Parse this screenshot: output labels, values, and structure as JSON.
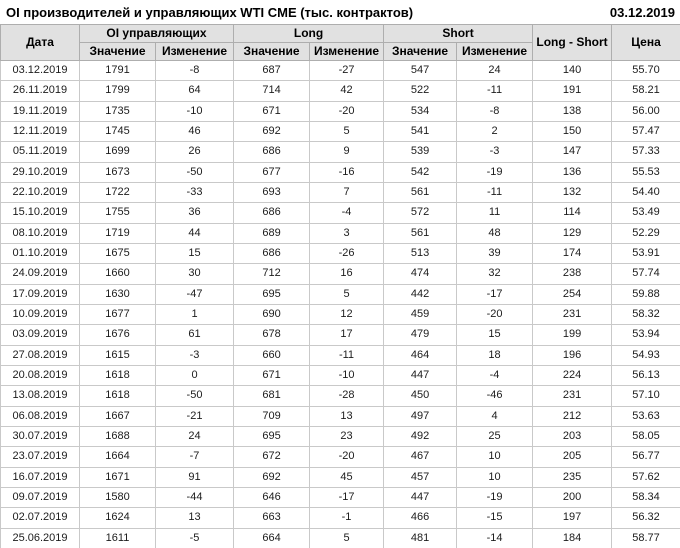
{
  "title": "OI производителей и управляющих WTI CME (тыс. контрактов)",
  "report_date": "03.12.2019",
  "colors": {
    "positive_change": "#009900",
    "negative_change": "#cc0000",
    "header_background": "#e1e1e1",
    "grid_line": "#c9c9c9",
    "text": "#1c1c1c"
  },
  "table": {
    "headers": {
      "date": "Дата",
      "oi_group": "OI управляющих",
      "long_group": "Long",
      "short_group": "Short",
      "value": "Значение",
      "change": "Изменение",
      "long_short": "Long - Short",
      "price": "Цена"
    },
    "row_keys": [
      "date",
      "oi_value",
      "oi_change",
      "long_value",
      "long_change",
      "short_value",
      "short_change",
      "long_short",
      "price"
    ],
    "change_keys": [
      "oi_change",
      "long_change",
      "short_change"
    ],
    "rows": [
      {
        "date": "03.12.2019",
        "oi_value": "1791",
        "oi_change": "-8",
        "long_value": "687",
        "long_change": "-27",
        "short_value": "547",
        "short_change": "24",
        "long_short": "140",
        "price": "55.70"
      },
      {
        "date": "26.11.2019",
        "oi_value": "1799",
        "oi_change": "64",
        "long_value": "714",
        "long_change": "42",
        "short_value": "522",
        "short_change": "-11",
        "long_short": "191",
        "price": "58.21"
      },
      {
        "date": "19.11.2019",
        "oi_value": "1735",
        "oi_change": "-10",
        "long_value": "671",
        "long_change": "-20",
        "short_value": "534",
        "short_change": "-8",
        "long_short": "138",
        "price": "56.00"
      },
      {
        "date": "12.11.2019",
        "oi_value": "1745",
        "oi_change": "46",
        "long_value": "692",
        "long_change": "5",
        "short_value": "541",
        "short_change": "2",
        "long_short": "150",
        "price": "57.47"
      },
      {
        "date": "05.11.2019",
        "oi_value": "1699",
        "oi_change": "26",
        "long_value": "686",
        "long_change": "9",
        "short_value": "539",
        "short_change": "-3",
        "long_short": "147",
        "price": "57.33"
      },
      {
        "date": "29.10.2019",
        "oi_value": "1673",
        "oi_change": "-50",
        "long_value": "677",
        "long_change": "-16",
        "short_value": "542",
        "short_change": "-19",
        "long_short": "136",
        "price": "55.53"
      },
      {
        "date": "22.10.2019",
        "oi_value": "1722",
        "oi_change": "-33",
        "long_value": "693",
        "long_change": "7",
        "short_value": "561",
        "short_change": "-11",
        "long_short": "132",
        "price": "54.40"
      },
      {
        "date": "15.10.2019",
        "oi_value": "1755",
        "oi_change": "36",
        "long_value": "686",
        "long_change": "-4",
        "short_value": "572",
        "short_change": "11",
        "long_short": "114",
        "price": "53.49"
      },
      {
        "date": "08.10.2019",
        "oi_value": "1719",
        "oi_change": "44",
        "long_value": "689",
        "long_change": "3",
        "short_value": "561",
        "short_change": "48",
        "long_short": "129",
        "price": "52.29"
      },
      {
        "date": "01.10.2019",
        "oi_value": "1675",
        "oi_change": "15",
        "long_value": "686",
        "long_change": "-26",
        "short_value": "513",
        "short_change": "39",
        "long_short": "174",
        "price": "53.91"
      },
      {
        "date": "24.09.2019",
        "oi_value": "1660",
        "oi_change": "30",
        "long_value": "712",
        "long_change": "16",
        "short_value": "474",
        "short_change": "32",
        "long_short": "238",
        "price": "57.74"
      },
      {
        "date": "17.09.2019",
        "oi_value": "1630",
        "oi_change": "-47",
        "long_value": "695",
        "long_change": "5",
        "short_value": "442",
        "short_change": "-17",
        "long_short": "254",
        "price": "59.88"
      },
      {
        "date": "10.09.2019",
        "oi_value": "1677",
        "oi_change": "1",
        "long_value": "690",
        "long_change": "12",
        "short_value": "459",
        "short_change": "-20",
        "long_short": "231",
        "price": "58.32"
      },
      {
        "date": "03.09.2019",
        "oi_value": "1676",
        "oi_change": "61",
        "long_value": "678",
        "long_change": "17",
        "short_value": "479",
        "short_change": "15",
        "long_short": "199",
        "price": "53.94"
      },
      {
        "date": "27.08.2019",
        "oi_value": "1615",
        "oi_change": "-3",
        "long_value": "660",
        "long_change": "-11",
        "short_value": "464",
        "short_change": "18",
        "long_short": "196",
        "price": "54.93"
      },
      {
        "date": "20.08.2019",
        "oi_value": "1618",
        "oi_change": "0",
        "long_value": "671",
        "long_change": "-10",
        "short_value": "447",
        "short_change": "-4",
        "long_short": "224",
        "price": "56.13"
      },
      {
        "date": "13.08.2019",
        "oi_value": "1618",
        "oi_change": "-50",
        "long_value": "681",
        "long_change": "-28",
        "short_value": "450",
        "short_change": "-46",
        "long_short": "231",
        "price": "57.10"
      },
      {
        "date": "06.08.2019",
        "oi_value": "1667",
        "oi_change": "-21",
        "long_value": "709",
        "long_change": "13",
        "short_value": "497",
        "short_change": "4",
        "long_short": "212",
        "price": "53.63"
      },
      {
        "date": "30.07.2019",
        "oi_value": "1688",
        "oi_change": "24",
        "long_value": "695",
        "long_change": "23",
        "short_value": "492",
        "short_change": "25",
        "long_short": "203",
        "price": "58.05"
      },
      {
        "date": "23.07.2019",
        "oi_value": "1664",
        "oi_change": "-7",
        "long_value": "672",
        "long_change": "-20",
        "short_value": "467",
        "short_change": "10",
        "long_short": "205",
        "price": "56.77"
      },
      {
        "date": "16.07.2019",
        "oi_value": "1671",
        "oi_change": "91",
        "long_value": "692",
        "long_change": "45",
        "short_value": "457",
        "short_change": "10",
        "long_short": "235",
        "price": "57.62"
      },
      {
        "date": "09.07.2019",
        "oi_value": "1580",
        "oi_change": "-44",
        "long_value": "646",
        "long_change": "-17",
        "short_value": "447",
        "short_change": "-19",
        "long_short": "200",
        "price": "58.34"
      },
      {
        "date": "02.07.2019",
        "oi_value": "1624",
        "oi_change": "13",
        "long_value": "663",
        "long_change": "-1",
        "short_value": "466",
        "short_change": "-15",
        "long_short": "197",
        "price": "56.32"
      },
      {
        "date": "25.06.2019",
        "oi_value": "1611",
        "oi_change": "-5",
        "long_value": "664",
        "long_change": "5",
        "short_value": "481",
        "short_change": "-14",
        "long_short": "184",
        "price": "58.77"
      }
    ]
  }
}
